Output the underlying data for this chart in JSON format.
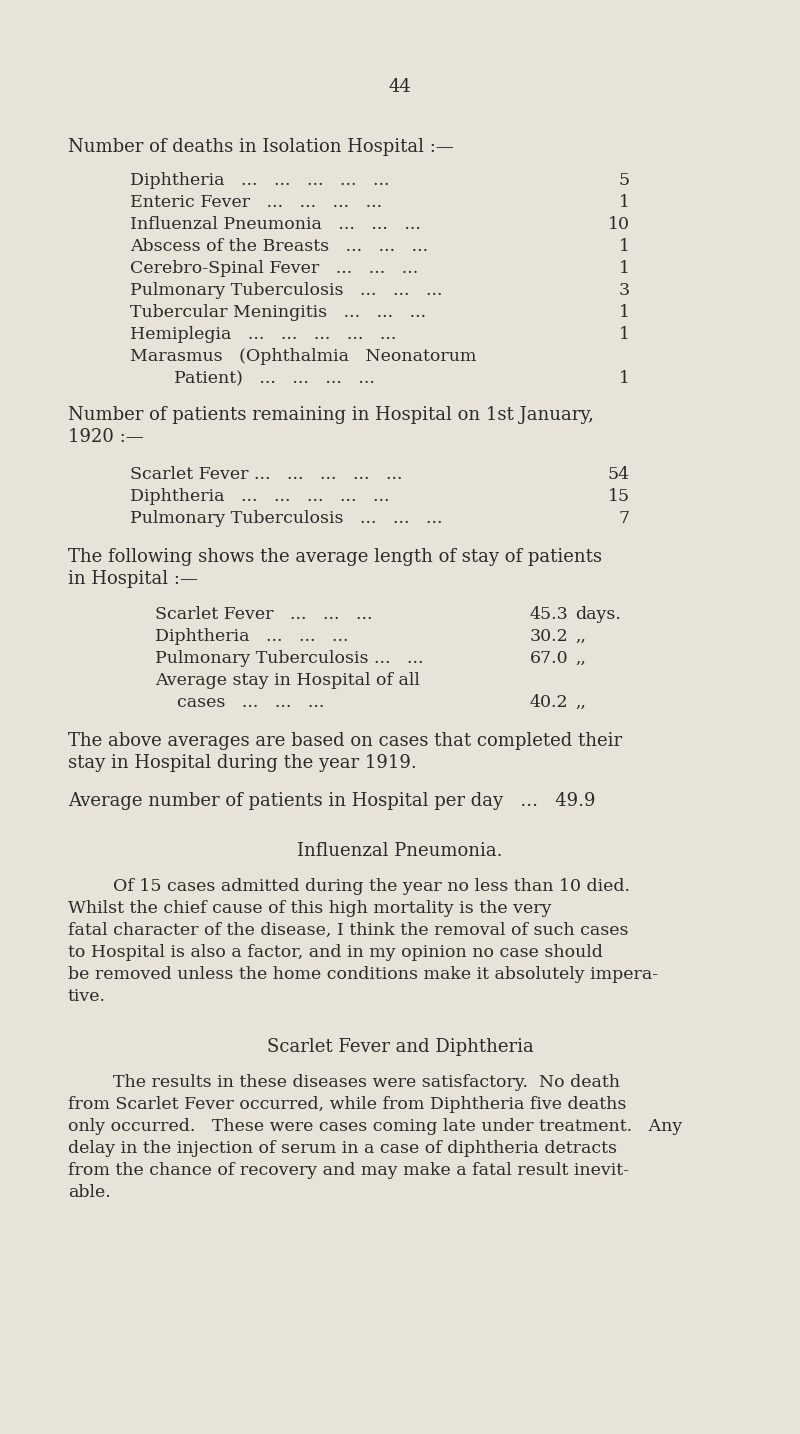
{
  "bg_color": "#e8e3d8",
  "text_color": "#2a2a2a",
  "page_number": "44",
  "s1_header": "Number of deaths in Isolation Hospital :—",
  "s1_items": [
    {
      "label": "Diphtheria   ...   ...   ...   ...   ...",
      "value": "5"
    },
    {
      "label": "Enteric Fever   ...   ...   ...   ...",
      "value": "1"
    },
    {
      "label": "Influenzal Pneumonia   ...   ...   ...",
      "value": "10"
    },
    {
      "label": "Abscess of the Breasts   ...   ...   ...",
      "value": "1"
    },
    {
      "label": "Cerebro-Spinal Fever   ...   ...   ...",
      "value": "1"
    },
    {
      "label": "Pulmonary Tuberculosis   ...   ...   ...",
      "value": "3"
    },
    {
      "label": "Tubercular Meningitis   ...   ...   ...",
      "value": "1"
    },
    {
      "label": "Hemiplegia   ...   ...   ...   ...   ...",
      "value": "1"
    },
    {
      "label": "Marasmus   (Ophthalmia   Neonatorum",
      "value": ""
    },
    {
      "label": "        Patient)   ...   ...   ...   ...",
      "value": "1"
    }
  ],
  "s2_header_line1": "Number of patients remaining in Hospital on 1st January,",
  "s2_header_line2": "1920 :—",
  "s2_items": [
    {
      "label": "Scarlet Fever ...   ...   ...   ...   ...",
      "value": "54"
    },
    {
      "label": "Diphtheria   ...   ...   ...   ...   ...",
      "value": "15"
    },
    {
      "label": "Pulmonary Tuberculosis   ...   ...   ...",
      "value": "7"
    }
  ],
  "s3_header_line1": "The following shows the average length of stay of patients",
  "s3_header_line2": "in Hospital :—",
  "s3_items": [
    {
      "label": "Scarlet Fever   ...   ...   ...",
      "value": "45.3",
      "unit": "days."
    },
    {
      "label": "Diphtheria   ...   ...   ...",
      "value": "30.2",
      "unit": ",,"
    },
    {
      "label": "Pulmonary Tuberculosis ...   ...",
      "value": "67.0",
      "unit": ",,"
    },
    {
      "label": "Average stay in Hospital of all",
      "value": "",
      "unit": ""
    },
    {
      "label": "    cases   ...   ...   ...",
      "value": "40.2",
      "unit": ",,"
    }
  ],
  "s3_note_line1": "The above averages are based on cases that completed their",
  "s3_note_line2": "stay in Hospital during the year 1919.",
  "avg_line": "Average number of patients in Hospital per day   ...   49.9",
  "s4_title": "Influenzal Pneumonia.",
  "s4_lines": [
    "Of 15 cases admitted during the year no less than 10 died.",
    "Whilst the chief cause of this high mortality is the very",
    "fatal character of the disease, I think the removal of such cases",
    "to Hospital is also a factor, and in my opinion no case should",
    "be removed unless the home conditions make it absolutely impera-",
    "tive."
  ],
  "s5_title": "Scarlet Fever and Diphtheria",
  "s5_lines": [
    "The results in these diseases were satisfactory.  No death",
    "from Scarlet Fever occurred, while from Diphtheria five deaths",
    "only occurred.   These were cases coming late under treatment.   Any",
    "delay in the injection of serum in a case of diphtheria detracts",
    "from the chance of recovery and may make a fatal result inevit-",
    "able."
  ]
}
